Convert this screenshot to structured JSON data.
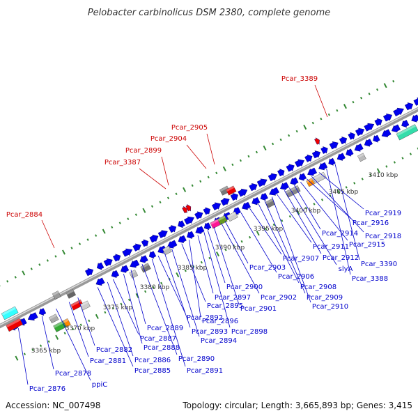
{
  "title": "Pelobacter carbinolicus DSM 2380, complete genome",
  "footer": {
    "accession": "Accession: NC_007498",
    "summary": "Topology: circular; Length: 3,665,893 bp; Genes: 3,415"
  },
  "colors": {
    "backbone": "#888888",
    "forward_gene": "#0000ee",
    "reverse_gene": "#0000ee",
    "red_label": "#cc0000",
    "blue_label": "#0000cc",
    "gc_tick": "#338833",
    "rna_red": "#ee0000",
    "pseudogene_gray": "#777777",
    "cyan": "#33ffff",
    "teal": "#33ddaa",
    "magenta": "#ff1493",
    "olive": "#669922",
    "orange": "#ff8800"
  },
  "scale_labels": [
    "3365 kbp",
    "3370 kbp",
    "3375 kbp",
    "3380 kbp",
    "3385 kbp",
    "3390 kbp",
    "3395 kbp",
    "3400 kbp",
    "3405 kbp",
    "3410 kbp"
  ],
  "upper_labels": [
    "Pcar_3389",
    "Pcar_2905",
    "Pcar_2904",
    "Pcar_2899",
    "Pcar_3387",
    "Pcar_2884"
  ],
  "lower_labels": [
    "Pcar_2876",
    "Pcar_2878",
    "ppiC",
    "Pcar_2881",
    "Pcar_2882",
    "Pcar_2885",
    "Pcar_2886",
    "Pcar_2887",
    "Pcar_2888",
    "Pcar_2889",
    "Pcar_2890",
    "Pcar_2891",
    "Pcar_2892",
    "Pcar_2893",
    "Pcar_2894",
    "Pcar_2895",
    "Pcar_2896",
    "Pcar_2897",
    "Pcar_2898",
    "Pcar_2900",
    "Pcar_2901",
    "Pcar_2902",
    "Pcar_2903",
    "Pcar_2906",
    "Pcar_2907",
    "Pcar_2908",
    "Pcar_2909",
    "Pcar_2910",
    "Pcar_2911",
    "Pcar_2912",
    "slyA",
    "Pcar_2914",
    "Pcar_2915",
    "Pcar_2916",
    "Pcar_2918",
    "Pcar_2919",
    "Pcar_3388",
    "Pcar_3390"
  ]
}
